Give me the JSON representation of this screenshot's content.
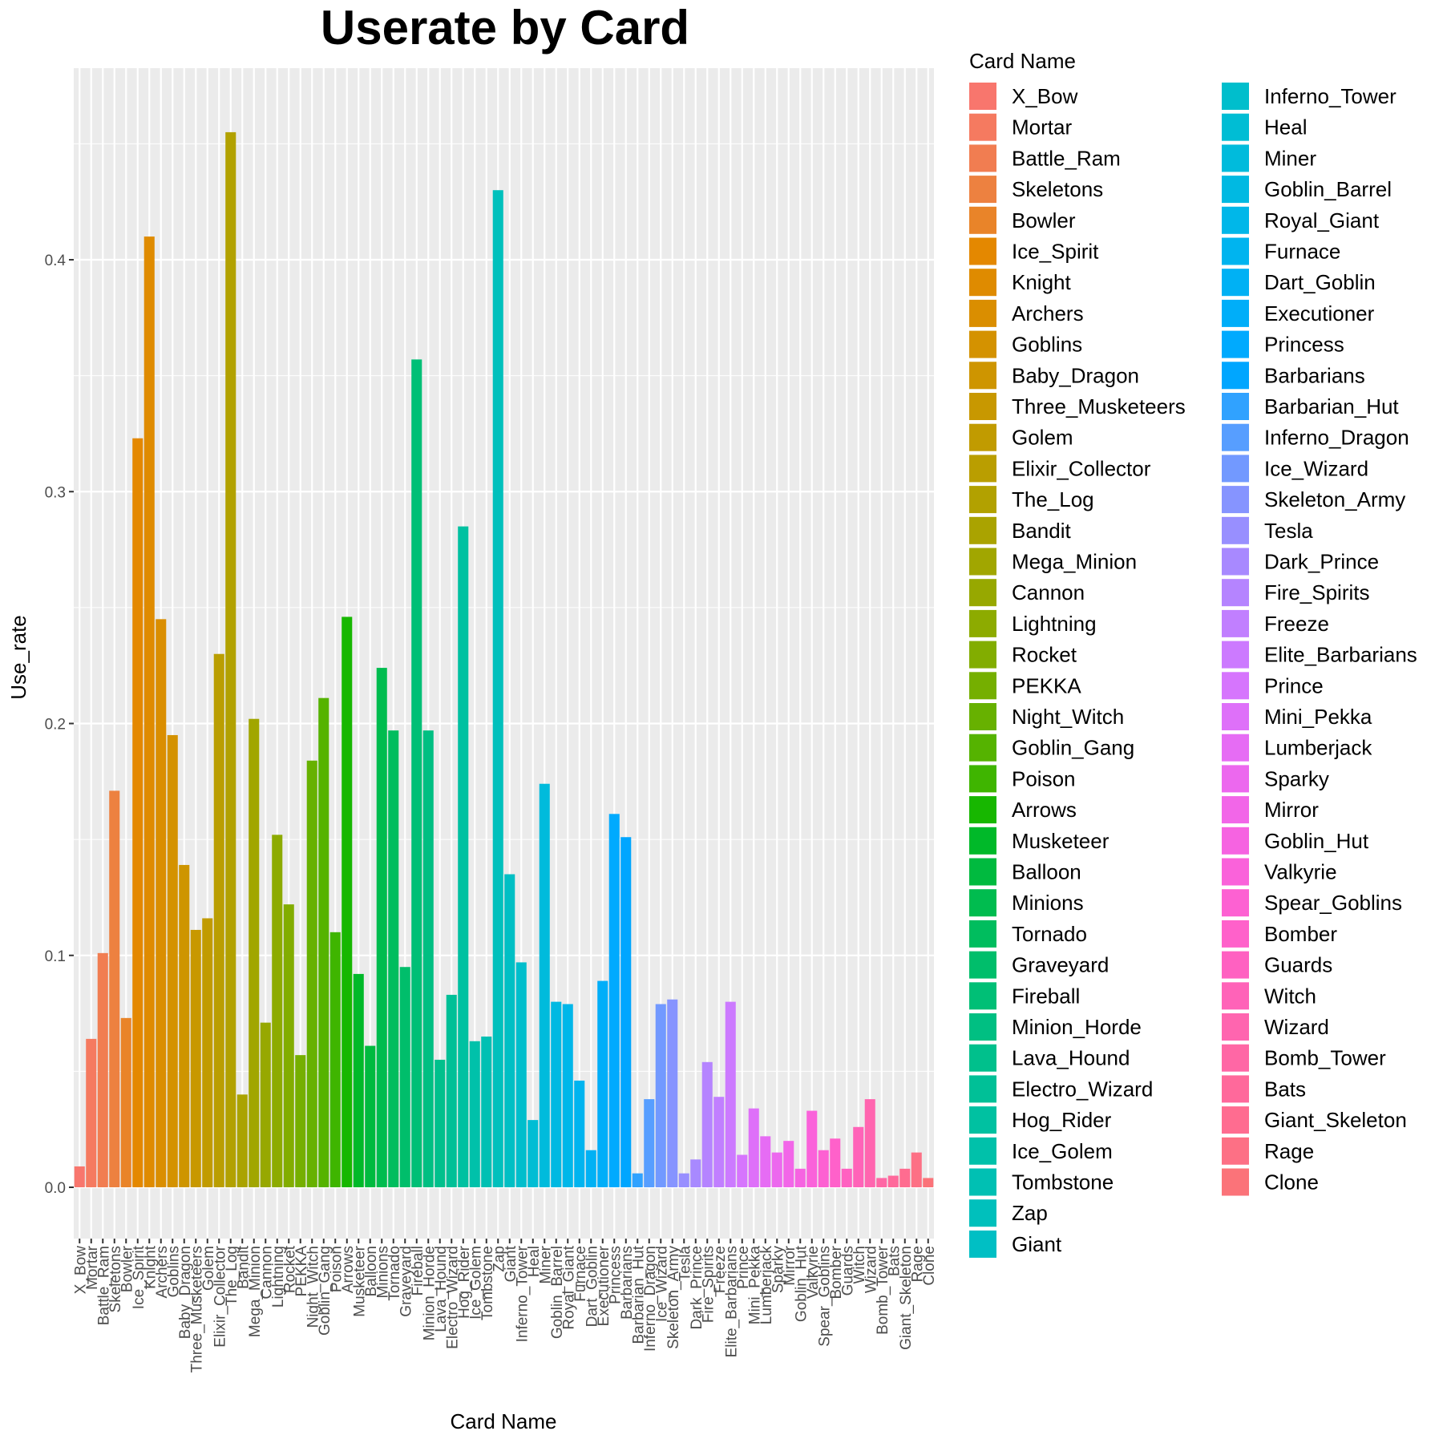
{
  "chart_data": {
    "type": "bar",
    "title": "Userate by Card",
    "xlabel": "Card Name",
    "ylabel": "Use_rate",
    "legend_title": "Card Name",
    "legend_position": "right",
    "grid": true,
    "ylim": [
      -0.025,
      0.48
    ],
    "yticks": [
      0.0,
      0.1,
      0.2,
      0.3,
      0.4
    ],
    "ytick_labels": [
      "0.0",
      "0.1",
      "0.2",
      "0.3",
      "0.4"
    ],
    "categories": [
      "X_Bow",
      "Mortar",
      "Battle_Ram",
      "Skeletons",
      "Bowler",
      "Ice_Spirit",
      "Knight",
      "Archers",
      "Goblins",
      "Baby_Dragon",
      "Three_Musketeers",
      "Golem",
      "Elixir_Collector",
      "The_Log",
      "Bandit",
      "Mega_Minion",
      "Cannon",
      "Lightning",
      "Rocket",
      "PEKKA",
      "Night_Witch",
      "Goblin_Gang",
      "Poison",
      "Arrows",
      "Musketeer",
      "Balloon",
      "Minions",
      "Tornado",
      "Graveyard",
      "Fireball",
      "Minion_Horde",
      "Lava_Hound",
      "Electro_Wizard",
      "Hog_Rider",
      "Ice_Golem",
      "Tombstone",
      "Zap",
      "Giant",
      "Inferno_Tower",
      "Heal",
      "Miner",
      "Goblin_Barrel",
      "Royal_Giant",
      "Furnace",
      "Dart_Goblin",
      "Executioner",
      "Princess",
      "Barbarians",
      "Barbarian_Hut",
      "Inferno_Dragon",
      "Ice_Wizard",
      "Skeleton_Army",
      "Tesla",
      "Dark_Prince",
      "Fire_Spirits",
      "Freeze",
      "Elite_Barbarians",
      "Prince",
      "Mini_Pekka",
      "Lumberjack",
      "Sparky",
      "Mirror",
      "Goblin_Hut",
      "Valkyrie",
      "Spear_Goblins",
      "Bomber",
      "Guards",
      "Witch",
      "Wizard",
      "Bomb_Tower",
      "Bats",
      "Giant_Skeleton",
      "Rage",
      "Clone"
    ],
    "values": [
      0.009,
      0.064,
      0.101,
      0.171,
      0.073,
      0.323,
      0.41,
      0.245,
      0.195,
      0.139,
      0.111,
      0.116,
      0.23,
      0.455,
      0.04,
      0.202,
      0.071,
      0.152,
      0.122,
      0.057,
      0.184,
      0.211,
      0.11,
      0.246,
      0.092,
      0.061,
      0.224,
      0.197,
      0.095,
      0.357,
      0.197,
      0.055,
      0.083,
      0.285,
      0.063,
      0.065,
      0.43,
      0.135,
      0.097,
      0.029,
      0.174,
      0.08,
      0.079,
      0.046,
      0.016,
      0.089,
      0.161,
      0.151,
      0.006,
      0.038,
      0.079,
      0.081,
      0.006,
      0.012,
      0.054,
      0.039,
      0.08,
      0.014,
      0.034,
      0.022,
      0.015,
      0.02,
      0.008,
      0.033,
      0.016,
      0.021,
      0.008,
      0.026,
      0.038,
      0.004,
      0.005,
      0.008,
      0.015,
      0.004
    ]
  }
}
